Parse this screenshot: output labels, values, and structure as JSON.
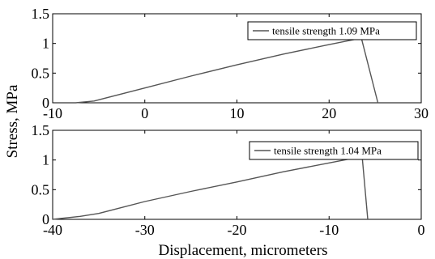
{
  "chart_data": [
    {
      "type": "line",
      "xlim": [
        -10,
        30
      ],
      "ylim": [
        0,
        1.5
      ],
      "xticks": [
        -10,
        0,
        10,
        20,
        30
      ],
      "yticks": [
        0,
        0.5,
        1,
        1.5
      ],
      "xtick_labels": [
        "-10",
        "0",
        "10",
        "20",
        "30"
      ],
      "ytick_labels": [
        "0",
        "0.5",
        "1",
        "1.5"
      ],
      "grid": false,
      "legend_position": "top-right",
      "series": [
        {
          "name": "tensile strength 1.09 MPa",
          "color": "#555555",
          "x": [
            -7.5,
            -5.5,
            0,
            5,
            10,
            15,
            20,
            23.5,
            25.3
          ],
          "y": [
            0,
            0.03,
            0.25,
            0.45,
            0.64,
            0.82,
            0.98,
            1.09,
            0
          ]
        }
      ]
    },
    {
      "type": "line",
      "xlim": [
        -40,
        0
      ],
      "ylim": [
        0,
        1.5
      ],
      "xticks": [
        -40,
        -30,
        -20,
        -10,
        0
      ],
      "yticks": [
        0,
        0.5,
        1,
        1.5
      ],
      "xtick_labels": [
        "-40",
        "-30",
        "-20",
        "-10",
        "0"
      ],
      "ytick_labels": [
        "0",
        "0.5",
        "1",
        "1.5"
      ],
      "grid": false,
      "legend_position": "top-right",
      "series": [
        {
          "name": "tensile strength 1.04 MPa",
          "color": "#555555",
          "x": [
            -40,
            -37,
            -35,
            -30,
            -25,
            -20,
            -15,
            -10,
            -7,
            -6.4,
            -5.8
          ],
          "y": [
            0,
            0.05,
            0.1,
            0.3,
            0.47,
            0.63,
            0.8,
            0.95,
            1.04,
            1.04,
            0
          ]
        }
      ]
    }
  ],
  "shared_labels": {
    "ylabel": "Stress, MPa",
    "xlabel": "Displacement, micrometers"
  }
}
